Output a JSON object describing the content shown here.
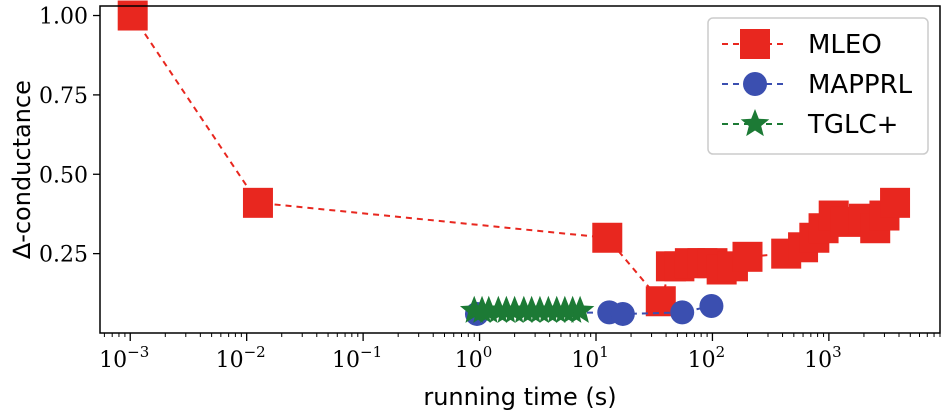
{
  "chart_data": {
    "type": "scatter",
    "xlabel": "running time (s)",
    "ylabel": "∆-conductance",
    "xscale": "log",
    "xlim": [
      0.00055,
      9000
    ],
    "ylim": [
      0.0,
      1.03
    ],
    "xticks": [
      {
        "value": 0.001,
        "base": "10",
        "exp": "−3"
      },
      {
        "value": 0.01,
        "base": "10",
        "exp": "−2"
      },
      {
        "value": 0.1,
        "base": "10",
        "exp": "−1"
      },
      {
        "value": 1,
        "base": "10",
        "exp": "0"
      },
      {
        "value": 10,
        "base": "10",
        "exp": "1"
      },
      {
        "value": 100,
        "base": "10",
        "exp": "2"
      },
      {
        "value": 1000,
        "base": "10",
        "exp": "3"
      }
    ],
    "yticks": [
      {
        "value": 0.25,
        "label": "0.25"
      },
      {
        "value": 0.5,
        "label": "0.50"
      },
      {
        "value": 0.75,
        "label": "0.75"
      },
      {
        "value": 1.0,
        "label": "1.00"
      }
    ],
    "legend_position": "top-right",
    "series": [
      {
        "name": "MLEO",
        "color": "#e8271f",
        "marker": "square",
        "linestyle": "dashed",
        "points": [
          [
            0.00105,
            1.0
          ],
          [
            0.0125,
            0.41
          ],
          [
            12.5,
            0.3
          ],
          [
            36,
            0.1
          ],
          [
            44,
            0.21
          ],
          [
            52,
            0.21
          ],
          [
            64,
            0.22
          ],
          [
            82,
            0.22
          ],
          [
            100,
            0.22
          ],
          [
            120,
            0.2
          ],
          [
            150,
            0.21
          ],
          [
            200,
            0.24
          ],
          [
            430,
            0.25
          ],
          [
            600,
            0.27
          ],
          [
            750,
            0.3
          ],
          [
            900,
            0.33
          ],
          [
            1100,
            0.37
          ],
          [
            1400,
            0.35
          ],
          [
            2000,
            0.36
          ],
          [
            2500,
            0.33
          ],
          [
            3000,
            0.37
          ],
          [
            3700,
            0.41
          ]
        ]
      },
      {
        "name": "MAPPRL",
        "color": "#3b4fb0",
        "marker": "circle",
        "linestyle": "dashed",
        "points": [
          [
            0.95,
            0.06
          ],
          [
            13,
            0.065
          ],
          [
            17,
            0.06
          ],
          [
            55,
            0.065
          ],
          [
            98,
            0.085
          ]
        ]
      },
      {
        "name": "TGLC+",
        "color": "#1c7a35",
        "marker": "star",
        "linestyle": "dashed",
        "points": [
          [
            0.9,
            0.07
          ],
          [
            1.05,
            0.07
          ],
          [
            1.2,
            0.07
          ],
          [
            1.45,
            0.07
          ],
          [
            1.7,
            0.07
          ],
          [
            2.0,
            0.07
          ],
          [
            2.4,
            0.07
          ],
          [
            2.8,
            0.07
          ],
          [
            3.3,
            0.07
          ],
          [
            3.9,
            0.07
          ],
          [
            4.6,
            0.07
          ],
          [
            5.4,
            0.07
          ],
          [
            6.3,
            0.07
          ],
          [
            7.3,
            0.07
          ]
        ]
      }
    ]
  }
}
